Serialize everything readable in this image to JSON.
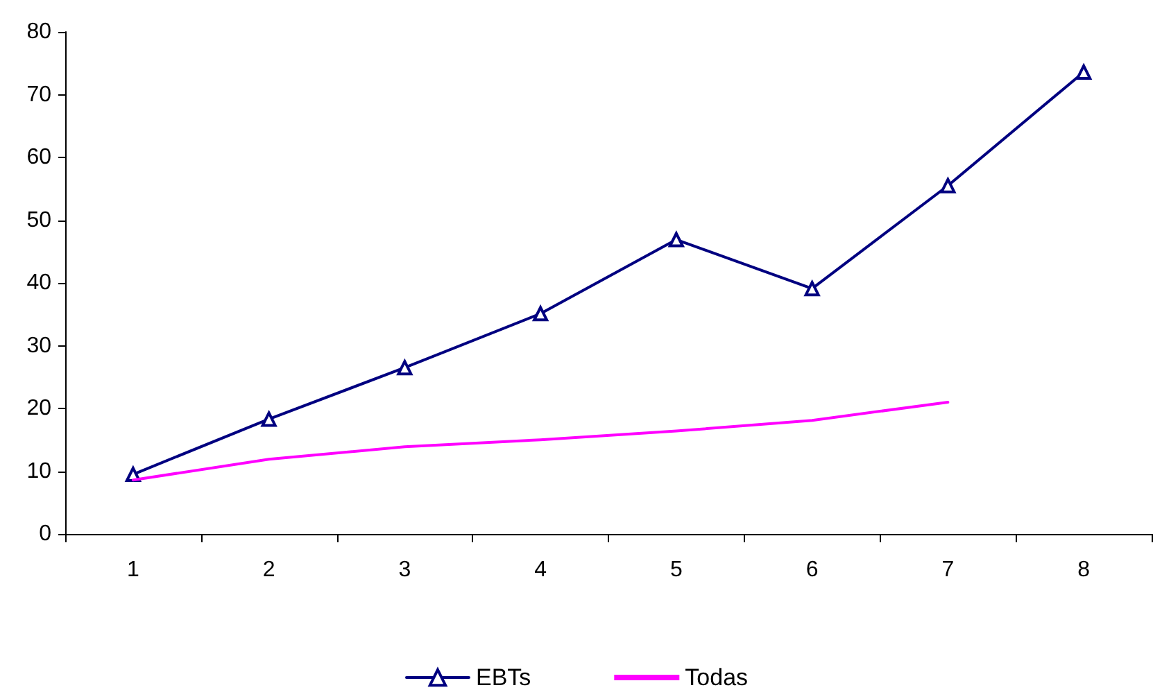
{
  "chart_data": {
    "type": "line",
    "categories": [
      "1",
      "2",
      "3",
      "4",
      "5",
      "6",
      "7",
      "8"
    ],
    "series": [
      {
        "name": "EBTs",
        "color": "#000080",
        "marker": "triangle",
        "values": [
          9.5,
          18.3,
          26.5,
          35.1,
          46.9,
          39.1,
          55.5,
          73.6
        ]
      },
      {
        "name": "Todas",
        "color": "#ff00ff",
        "marker": "none",
        "values": [
          8.6,
          11.9,
          13.9,
          15.0,
          16.4,
          18.1,
          21.0,
          null
        ]
      }
    ],
    "ylim": [
      0,
      80
    ],
    "yticks": [
      0,
      10,
      20,
      30,
      40,
      50,
      60,
      70,
      80
    ],
    "grid": false,
    "legend": "bottom",
    "line_style": "solid"
  }
}
